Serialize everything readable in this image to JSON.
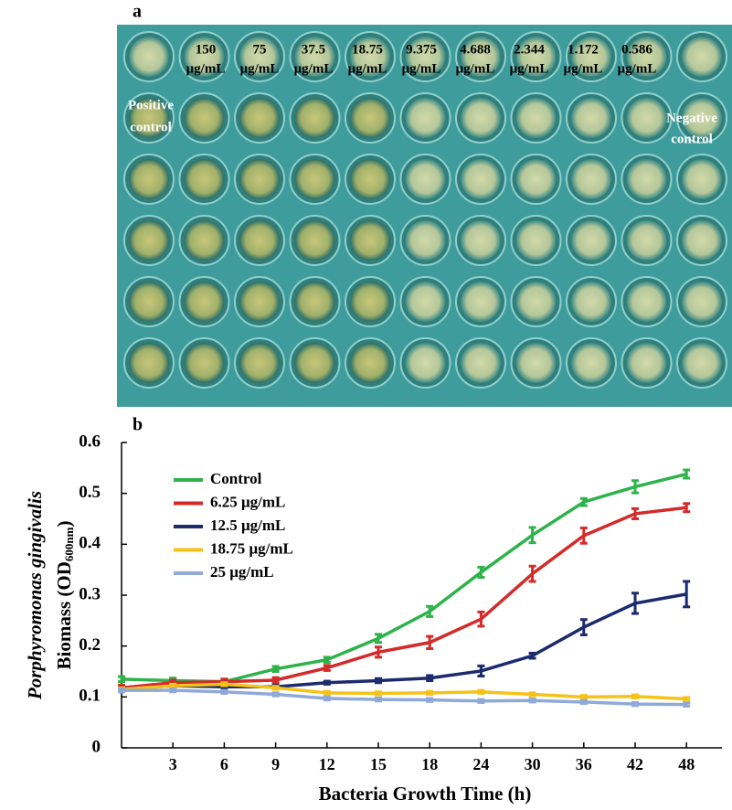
{
  "photo": {
    "panel": "a",
    "concentrations": [
      {
        "amount": "150",
        "unit": "μg/mL"
      },
      {
        "amount": "75",
        "unit": "μg/mL"
      },
      {
        "amount": "37.5",
        "unit": "μg/mL"
      },
      {
        "amount": "18.75",
        "unit": "μg/mL"
      },
      {
        "amount": "9.375",
        "unit": "μg/mL"
      },
      {
        "amount": "4.688",
        "unit": "μg/mL"
      },
      {
        "amount": "2.344",
        "unit": "μg/mL"
      },
      {
        "amount": "1.172",
        "unit": "μg/mL"
      },
      {
        "amount": "0.586",
        "unit": "μg/mL"
      }
    ],
    "positive_control": [
      "Positive",
      "control"
    ],
    "negative_control": [
      "Negative",
      "control"
    ]
  },
  "chart_data": {
    "type": "line",
    "panel": "b",
    "x_label": "Bacteria Growth Time (h)",
    "y_label": [
      "Porphyromonas gingivalis",
      "Biomass  (OD",
      "600nm",
      ")"
    ],
    "categories": [
      null,
      "3",
      "6",
      "9",
      "12",
      "15",
      "18",
      "24",
      "30",
      "36",
      "42",
      "48"
    ],
    "ylim": [
      0,
      0.6
    ],
    "yticks": [
      0,
      0.1,
      0.2,
      0.3,
      0.4,
      0.5,
      0.6
    ],
    "legend": "upper left",
    "series": [
      {
        "name": "Control",
        "color": "#2db34a",
        "values": [
          0.135,
          0.132,
          0.13,
          0.155,
          0.173,
          0.215,
          0.268,
          0.345,
          0.418,
          0.483,
          0.513,
          0.538
        ],
        "errors": [
          0.005,
          0.005,
          0.005,
          0.005,
          0.005,
          0.008,
          0.01,
          0.01,
          0.015,
          0.007,
          0.012,
          0.008
        ]
      },
      {
        "name": "6.25 μg/mL",
        "color": "#d42a2a",
        "values": [
          0.118,
          0.128,
          0.13,
          0.133,
          0.157,
          0.188,
          0.207,
          0.253,
          0.342,
          0.417,
          0.46,
          0.472
        ],
        "errors": [
          0.005,
          0.005,
          0.005,
          0.005,
          0.005,
          0.01,
          0.012,
          0.014,
          0.015,
          0.015,
          0.01,
          0.008
        ]
      },
      {
        "name": "12.5 μg/mL",
        "color": "#1c2a6e",
        "values": [
          0.115,
          0.122,
          0.12,
          0.12,
          0.128,
          0.132,
          0.137,
          0.151,
          0.181,
          0.237,
          0.284,
          0.302
        ],
        "errors": [
          0.003,
          0.003,
          0.003,
          0.003,
          0.003,
          0.004,
          0.005,
          0.01,
          0.005,
          0.015,
          0.02,
          0.025
        ]
      },
      {
        "name": "18.75 μg/mL",
        "color": "#f5c21a",
        "values": [
          0.115,
          0.122,
          0.125,
          0.118,
          0.108,
          0.107,
          0.108,
          0.11,
          0.105,
          0.1,
          0.101,
          0.096
        ],
        "errors": [
          0.003,
          0.003,
          0.003,
          0.003,
          0.003,
          0.003,
          0.003,
          0.003,
          0.003,
          0.003,
          0.003,
          0.003
        ]
      },
      {
        "name": "25 μg/mL",
        "color": "#8fa9d8",
        "values": [
          0.113,
          0.113,
          0.11,
          0.105,
          0.097,
          0.095,
          0.094,
          0.092,
          0.093,
          0.09,
          0.086,
          0.085
        ],
        "errors": [
          0.003,
          0.003,
          0.003,
          0.003,
          0.003,
          0.003,
          0.003,
          0.003,
          0.003,
          0.003,
          0.003,
          0.003
        ]
      }
    ]
  }
}
